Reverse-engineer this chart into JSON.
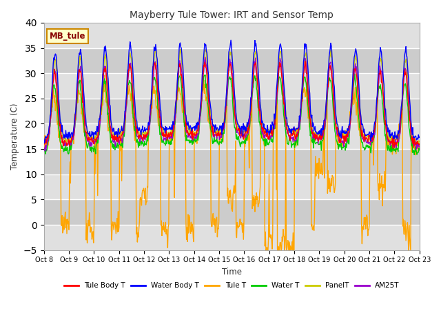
{
  "title": "Mayberry Tule Tower: IRT and Sensor Temp",
  "xlabel": "Time",
  "ylabel": "Temperature (C)",
  "ylim": [
    -5,
    40
  ],
  "yticks": [
    -5,
    0,
    5,
    10,
    15,
    20,
    25,
    30,
    35,
    40
  ],
  "x_labels": [
    "Oct 8",
    "Oct 9",
    "Oct 10",
    "Oct 11",
    "Oct 12",
    "Oct 13",
    "Oct 14",
    "Oct 15",
    "Oct 16",
    "Oct 17",
    "Oct 18",
    "Oct 19",
    "Oct 20",
    "Oct 21",
    "Oct 22",
    "Oct 23"
  ],
  "series_colors": {
    "Tule Body T": "#ff0000",
    "Water Body T": "#0000ff",
    "Tule T": "#ffa500",
    "Water T": "#00cc00",
    "PanelT": "#cccc00",
    "AM25T": "#9900cc"
  },
  "legend_label": "MB_tule",
  "legend_box_color": "#ffffcc",
  "legend_box_edge": "#cc8800",
  "band_colors": [
    "#e8e8e8",
    "#d0d0d0"
  ],
  "grid_color": "#bbbbbb",
  "n_days": 15,
  "seed": 42
}
